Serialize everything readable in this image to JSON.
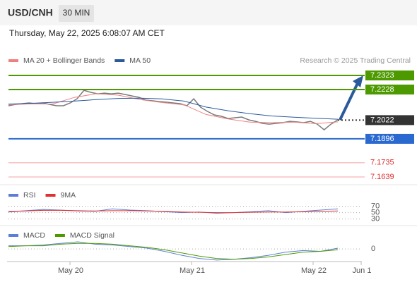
{
  "header": {
    "symbol": "USD/CNH",
    "interval": "30 MIN",
    "datetime": "Thursday, May 22, 2025 6:08:07 AM CET"
  },
  "source": "Research © 2025 Trading Central",
  "x_labels": [
    "May 20",
    "May 21",
    "May 22",
    "Jun 1"
  ],
  "chart_data": [
    {
      "type": "line",
      "color": "#7a7a7a",
      "values": [
        7.2119,
        7.2128,
        7.2133,
        7.2138,
        7.2133,
        7.2138,
        7.2128,
        7.2119,
        7.2119,
        7.2138,
        7.2166,
        7.2223,
        7.2209,
        7.2199,
        7.2204,
        7.2199,
        7.2204,
        7.2195,
        7.2185,
        7.2176,
        7.2157,
        7.2152,
        7.2147,
        7.2143,
        7.2138,
        7.2133,
        7.2119,
        7.2166,
        7.2109,
        7.2081,
        7.2057,
        7.2048,
        7.2033,
        7.2038,
        7.2043,
        7.2024,
        7.2014,
        7.2,
        7.1995,
        7.2,
        7.2005,
        7.2014,
        7.201,
        7.2005,
        7.2014,
        7.1995,
        7.1957,
        7.1995,
        7.2024
      ],
      "series": [
        {
          "name": "MA 20 + Bollinger Bands",
          "color": "#f08080",
          "values": [
            7.2125,
            7.2132,
            7.213,
            7.2175,
            7.22,
            7.219,
            7.216,
            7.214,
            7.2125,
            7.206,
            7.203,
            7.2008,
            7.2005,
            7.2008,
            7.1998,
            7.201
          ]
        },
        {
          "name": "MA 50",
          "color": "#2b5a9b",
          "values": [
            7.213,
            7.2135,
            7.2142,
            7.215,
            7.216,
            7.2168,
            7.217,
            7.2165,
            7.215,
            7.211,
            7.2085,
            7.2065,
            7.205,
            7.2042,
            7.2035,
            7.2028
          ]
        }
      ],
      "ylim": [
        7.238,
        7.1587
      ],
      "levels": [
        {
          "value": 7.2323,
          "color": "#4c9a00",
          "style": "box"
        },
        {
          "value": 7.2228,
          "color": "#4c9a00",
          "style": "box"
        },
        {
          "value": 7.2022,
          "color": "#333333",
          "style": "current"
        },
        {
          "value": 7.1896,
          "color": "#2a6ad0",
          "style": "box"
        },
        {
          "value": 7.1735,
          "color": "#e03030",
          "style": "text"
        },
        {
          "value": 7.1639,
          "color": "#e03030",
          "style": "text"
        }
      ]
    },
    {
      "type": "line",
      "series": [
        {
          "name": "RSI",
          "color": "#5b7fd6",
          "values": [
            52,
            56,
            60,
            58,
            55,
            54,
            62,
            58,
            56,
            53,
            50,
            52,
            48,
            50,
            53,
            56,
            50,
            54,
            58,
            62
          ]
        },
        {
          "name": "9MA",
          "color": "#e03030",
          "values": [
            54,
            55,
            57,
            57,
            56,
            55,
            56,
            56,
            55,
            54,
            52,
            51,
            50,
            50,
            51,
            52,
            52,
            53,
            54,
            55
          ]
        }
      ],
      "ylim": [
        120,
        18
      ],
      "yticks": [
        70,
        50,
        30
      ]
    },
    {
      "type": "line",
      "series": [
        {
          "name": "MACD",
          "color": "#5b7fd6",
          "values": [
            0.0004,
            0.0004,
            0.0005,
            0.0007,
            0.0009,
            0.0006,
            0.0005,
            0.0003,
            0.0001,
            -0.0003,
            -0.0008,
            -0.0012,
            -0.0014,
            -0.0013,
            -0.0011,
            -0.0008,
            -0.0004,
            -0.0002,
            -0.0003,
            0.0001
          ]
        },
        {
          "name": "MACD Signal",
          "color": "#4c9a00",
          "values": [
            0.0003,
            0.0004,
            0.0004,
            0.0006,
            0.0007,
            0.0007,
            0.0006,
            0.0004,
            0.0002,
            -0.0001,
            -0.0005,
            -0.0009,
            -0.0012,
            -0.0013,
            -0.0012,
            -0.001,
            -0.0007,
            -0.0004,
            -0.0003,
            -0.0001
          ]
        }
      ],
      "ylim": [
        0.0025,
        -0.0015
      ],
      "yticks": [
        0
      ]
    }
  ]
}
